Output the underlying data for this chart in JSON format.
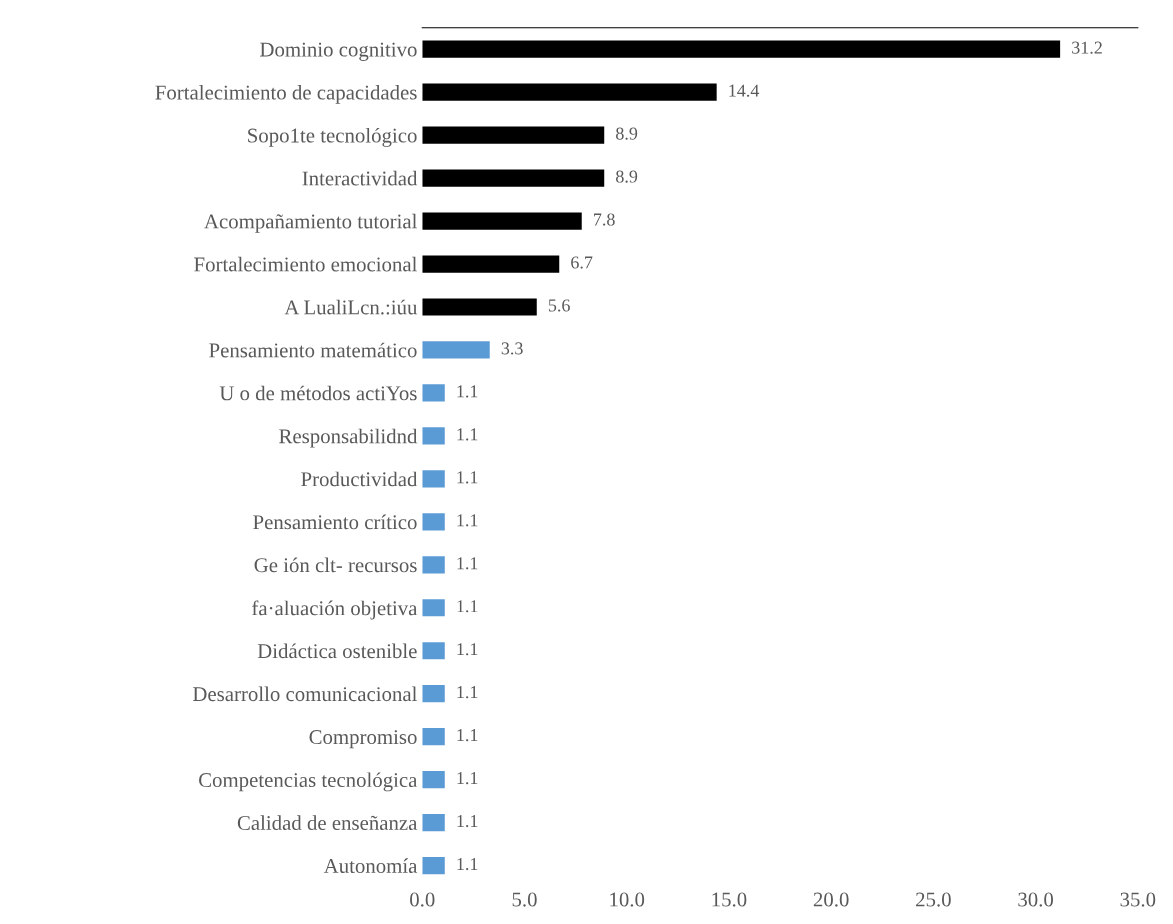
{
  "chart_data": {
    "type": "bar",
    "orientation": "horizontal",
    "data_labels": true,
    "grid": false,
    "categories": [
      "Dominio cognitivo",
      "Fortalecimiento de capacidades",
      "Sopo1te tecnológico",
      "Interactividad",
      "Acompañamiento tutorial",
      "Fortalecimiento emocional",
      "A LualiLcn.:iúu",
      "Pensamiento matemático",
      "U o de métodos actiYos",
      "Responsabilidnd",
      "Productividad",
      "Pensamiento crítico",
      "Ge ión clt- recursos",
      "fa·aluación objetiva",
      "Didáctica ostenible",
      "Desarrollo comunicacional",
      "Compromiso",
      "Competencias tecnológica",
      "Calidad de enseñanza",
      "Autonomía"
    ],
    "values": [
      31.2,
      14.4,
      8.9,
      8.9,
      7.8,
      6.7,
      5.6,
      3.3,
      1.1,
      1.1,
      1.1,
      1.1,
      1.1,
      1.1,
      1.1,
      1.1,
      1.1,
      1.1,
      1.1,
      1.1
    ],
    "colors": [
      "#000000",
      "#000000",
      "#000000",
      "#000000",
      "#000000",
      "#000000",
      "#000000",
      "#5b9bd5",
      "#5b9bd5",
      "#5b9bd5",
      "#5b9bd5",
      "#5b9bd5",
      "#5b9bd5",
      "#5b9bd5",
      "#5b9bd5",
      "#5b9bd5",
      "#5b9bd5",
      "#5b9bd5",
      "#5b9bd5",
      "#5b9bd5"
    ],
    "xlim": [
      0,
      35
    ],
    "xticks": [
      {
        "value": 0,
        "label": "0.0"
      },
      {
        "value": 5,
        "label": "5.0"
      },
      {
        "value": 10,
        "label": "10.0"
      },
      {
        "value": 15,
        "label": "15.0"
      },
      {
        "value": 20,
        "label": "20.0"
      },
      {
        "value": 25,
        "label": "25.0"
      },
      {
        "value": 30,
        "label": "30.0"
      },
      {
        "value": 35,
        "label": "35.0"
      }
    ]
  }
}
